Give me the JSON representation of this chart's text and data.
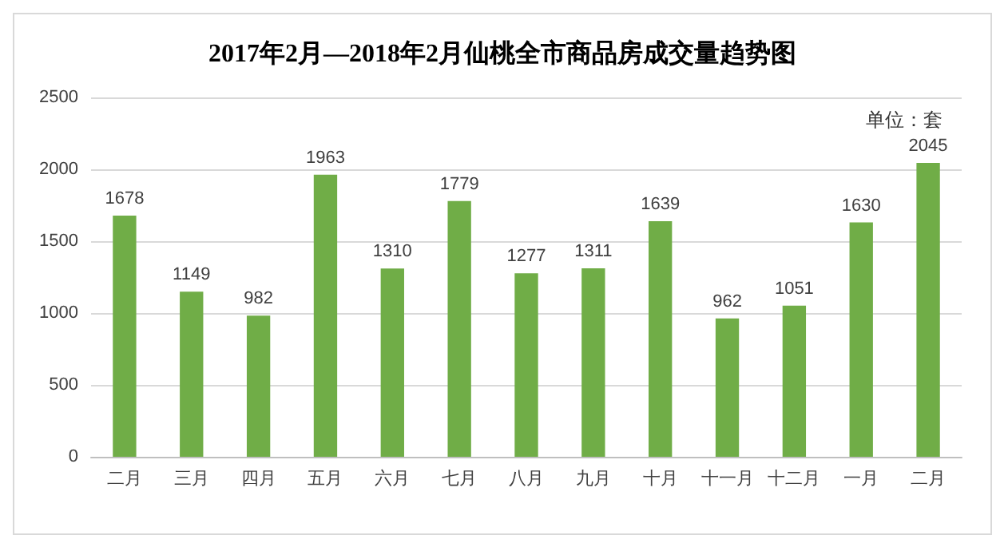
{
  "chart_data": {
    "type": "bar",
    "title": "2017年2月—2018年2月仙桃全市商品房成交量趋势图",
    "categories": [
      "二月",
      "三月",
      "四月",
      "五月",
      "六月",
      "七月",
      "八月",
      "九月",
      "十月",
      "十一月",
      "十二月",
      "一月",
      "二月"
    ],
    "values": [
      1678,
      1149,
      982,
      1963,
      1310,
      1779,
      1277,
      1311,
      1639,
      962,
      1051,
      1630,
      2045
    ],
    "color": "#70ad47",
    "ylim": [
      0,
      2500
    ],
    "yticks": [
      0,
      500,
      1000,
      1500,
      2000,
      2500
    ],
    "grid": "y",
    "data_labels": true,
    "annotations": [
      "单位：套"
    ]
  }
}
